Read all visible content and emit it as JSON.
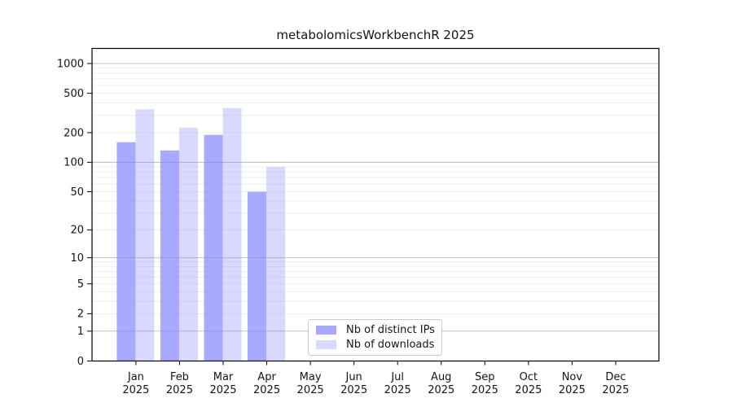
{
  "chart_data": {
    "type": "bar",
    "title": "metabolomicsWorkbenchR 2025",
    "categories": [
      "Jan",
      "Feb",
      "Mar",
      "Apr",
      "May",
      "Jun",
      "Jul",
      "Aug",
      "Sep",
      "Oct",
      "Nov",
      "Dec"
    ],
    "x_tick_year": "2025",
    "series": [
      {
        "name": "Nb of distinct IPs",
        "color": "rgba(128,128,255,0.68)",
        "values": [
          160,
          132,
          190,
          50,
          null,
          null,
          null,
          null,
          null,
          null,
          null,
          null
        ]
      },
      {
        "name": "Nb of downloads",
        "color": "rgba(128,128,255,0.30)",
        "values": [
          345,
          225,
          355,
          90,
          null,
          null,
          null,
          null,
          null,
          null,
          null,
          null
        ]
      }
    ],
    "yscale": "log1p",
    "yticks": [
      0,
      1,
      2,
      5,
      10,
      20,
      50,
      100,
      200,
      500,
      1000
    ],
    "ylim": [
      0,
      1420
    ],
    "grid": {
      "orientation": "horizontal",
      "major_color": "#bbbbbb",
      "minor_color": "#ebebeb",
      "major_at": [
        1,
        10,
        100,
        1000
      ]
    },
    "legend": {
      "position": "lower center",
      "labels": [
        "Nb of distinct IPs",
        "Nb of downloads"
      ]
    },
    "axis_color": "#000000",
    "text_color": "#151515"
  }
}
